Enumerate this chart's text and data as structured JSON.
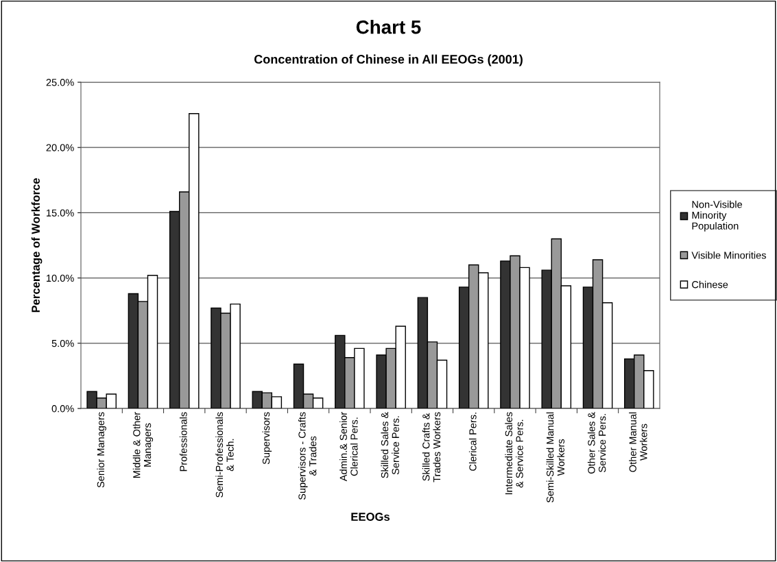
{
  "chart_data": {
    "type": "bar",
    "title": "Chart 5",
    "subtitle": "Concentration of Chinese in All EEOGs (2001)",
    "xlabel": "EEOGs",
    "ylabel": "Percentage of Workforce",
    "categories": [
      "Senior Managers",
      "Middle & Other\nManagers",
      "Professionals",
      "Semi-Professionals\n& Tech.",
      "Supervisors",
      "Supervisors - Crafts\n& Trades",
      "Admin.& Senior\nClerical Pers.",
      "Skilled Sales &\nService Pers.",
      "Skilled Crafts &\nTrades Workers",
      "Clerical Pers.",
      "Intermediate Sales\n& Service Pers.",
      "Semi-Skilled Manual\nWorkers",
      "Other Sales &\nService Pers.",
      "Other Manual\nWorkers"
    ],
    "series": [
      {
        "name": "Non-Visible\nMinority\nPopulation",
        "color": "#333333",
        "values": [
          1.3,
          8.8,
          15.1,
          7.7,
          1.3,
          3.4,
          5.6,
          4.1,
          8.5,
          9.3,
          11.3,
          10.6,
          9.3,
          3.8
        ]
      },
      {
        "name": "Visible Minorities",
        "color": "#999999",
        "values": [
          0.8,
          8.2,
          16.6,
          7.3,
          1.2,
          1.1,
          3.9,
          4.6,
          5.1,
          11.0,
          11.7,
          13.0,
          11.4,
          4.1
        ]
      },
      {
        "name": "Chinese",
        "color": "#ffffff",
        "values": [
          1.1,
          10.2,
          22.6,
          8.0,
          0.9,
          0.8,
          4.6,
          6.3,
          3.7,
          10.4,
          10.8,
          9.4,
          8.1,
          2.9
        ]
      }
    ],
    "ylim": [
      0,
      25
    ],
    "yticks": [
      {
        "value": 0,
        "label": "0.0%"
      },
      {
        "value": 5,
        "label": "5.0%"
      },
      {
        "value": 10,
        "label": "10.0%"
      },
      {
        "value": 15,
        "label": "15.0%"
      },
      {
        "value": 20,
        "label": "20.0%"
      },
      {
        "value": 25,
        "label": "25.0%"
      }
    ],
    "grid": "y",
    "legend": "right"
  }
}
